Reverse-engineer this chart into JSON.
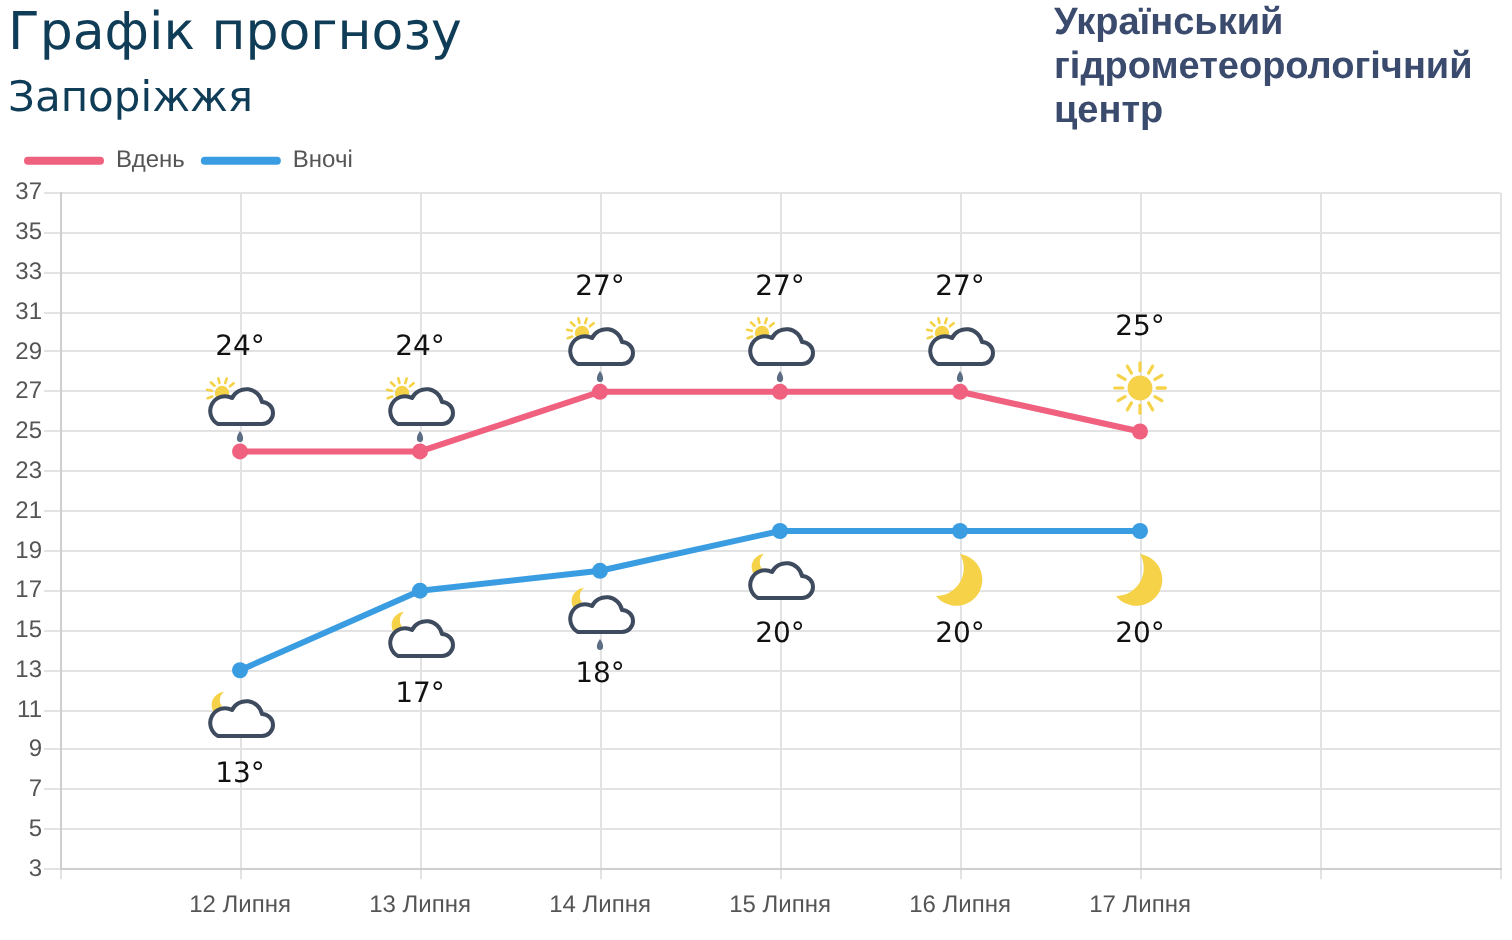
{
  "chart_data": {
    "type": "line",
    "title": "Графік прогнозу",
    "subtitle": "Запоріжжя",
    "annotations": [
      "Український гідрометеорологічний центр"
    ],
    "categories": [
      null,
      "12 Липня",
      "13 Липня",
      "14 Липня",
      "15 Липня",
      "16 Липня",
      "17 Липня",
      null,
      null
    ],
    "series": [
      {
        "name": "Вдень",
        "color": "#f0607f",
        "values": [
          null,
          24,
          24,
          27,
          27,
          27,
          25,
          null,
          null
        ],
        "value_labels": [
          null,
          "24°",
          "24°",
          "27°",
          "27°",
          "27°",
          "25°",
          null,
          null
        ]
      },
      {
        "name": "Вночі",
        "color": "#3a9de2",
        "values": [
          null,
          13,
          17,
          18,
          20,
          20,
          20,
          null,
          null
        ],
        "value_labels": [
          null,
          "13°",
          "17°",
          "18°",
          "20°",
          "20°",
          "20°",
          null,
          null
        ]
      }
    ],
    "ylim": [
      3,
      37
    ],
    "yticks": [
      3,
      5,
      7,
      9,
      11,
      13,
      15,
      17,
      19,
      21,
      23,
      25,
      27,
      29,
      31,
      33,
      35,
      37
    ],
    "grid": true,
    "legend": "top left",
    "marker": "circle",
    "line_style": "solid"
  }
}
